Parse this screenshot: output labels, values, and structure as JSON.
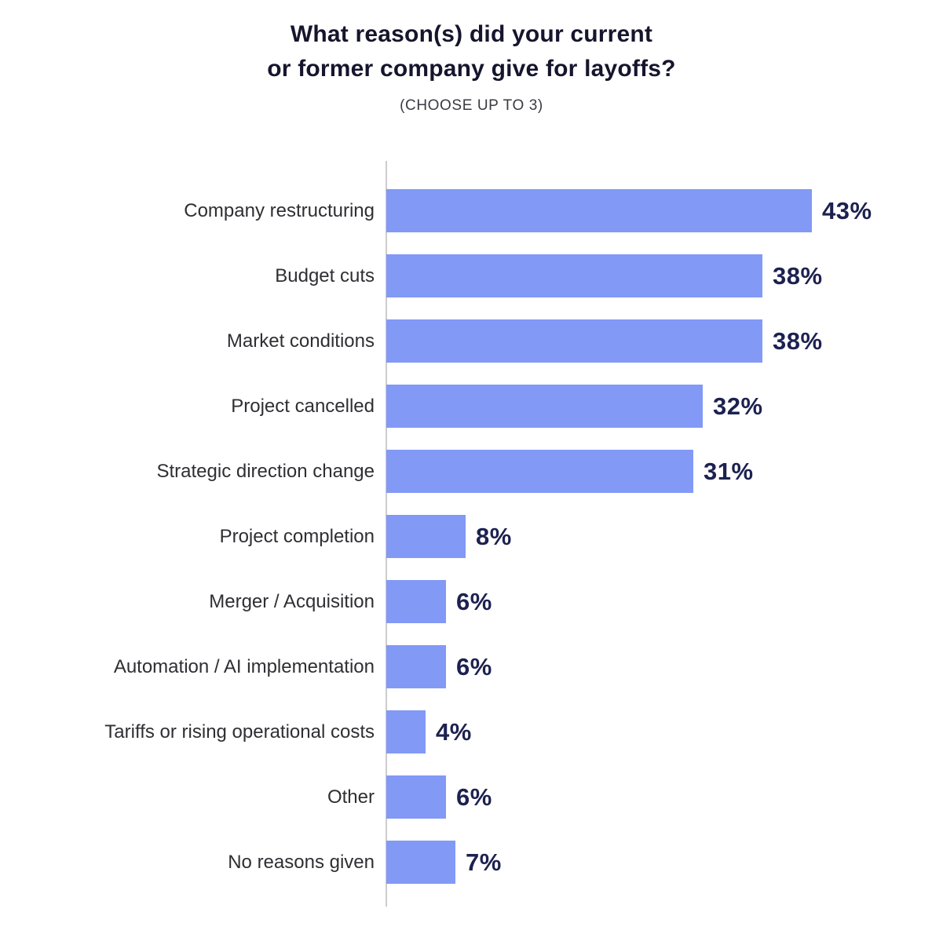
{
  "title": {
    "line1": "What reason(s) did your current",
    "line2": "or former company give for layoffs?",
    "subtitle": "(CHOOSE UP TO 3)"
  },
  "colors": {
    "background": "#ffffff",
    "bar": "#8299f6",
    "value_label": "#1d2150",
    "category_label": "#2f2f33",
    "title": "#15152d",
    "subtitle": "#3a3a40",
    "axis_line": "#cccccc"
  },
  "chart_data": {
    "type": "bar",
    "orientation": "horizontal",
    "title": "What reason(s) did your current or former company give for layoffs?",
    "subtitle": "(CHOOSE UP TO 3)",
    "categories": [
      "Company restructuring",
      "Budget cuts",
      "Market conditions",
      "Project cancelled",
      "Strategic direction change",
      "Project completion",
      "Merger / Acquisition",
      "Automation / AI implementation",
      "Tariffs or rising operational costs",
      "Other",
      "No reasons given"
    ],
    "values": [
      43,
      38,
      38,
      32,
      31,
      8,
      6,
      6,
      4,
      6,
      7
    ],
    "value_labels": [
      "43%",
      "38%",
      "38%",
      "32%",
      "31%",
      "8%",
      "6%",
      "6%",
      "4%",
      "6%",
      "7%"
    ],
    "xlabel": "",
    "ylabel": "",
    "xlim": [
      0,
      50
    ],
    "grid": false,
    "legend": "none"
  }
}
